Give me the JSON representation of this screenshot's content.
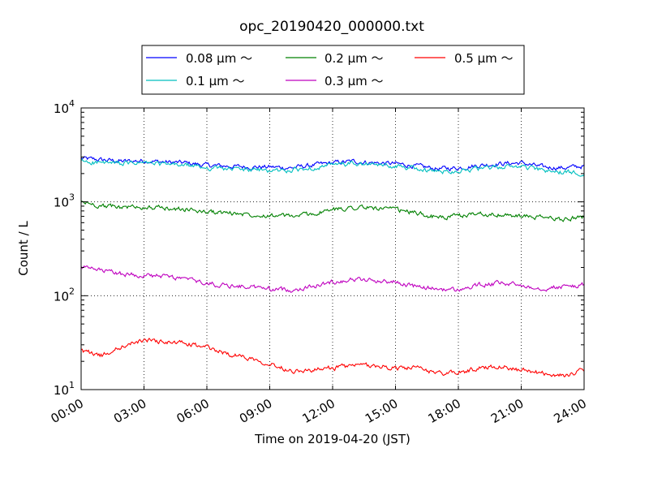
{
  "chart_data": {
    "type": "line",
    "title": "opc_20190420_000000.txt",
    "xlabel": "Time on 2019-04-20 (JST)",
    "ylabel": "Count / L",
    "y_scale": "log",
    "ylim": [
      10,
      10000
    ],
    "xlim": [
      "00:00",
      "24:00"
    ],
    "grid": true,
    "legend_position": "top",
    "x_ticks": [
      "00:00",
      "03:00",
      "06:00",
      "09:00",
      "12:00",
      "15:00",
      "18:00",
      "21:00",
      "24:00"
    ],
    "y_ticks": [
      {
        "value": 10,
        "base": "10",
        "exp": "1"
      },
      {
        "value": 100,
        "base": "10",
        "exp": "2"
      },
      {
        "value": 1000,
        "base": "10",
        "exp": "3"
      },
      {
        "value": 10000,
        "base": "10",
        "exp": "4"
      }
    ],
    "x_hours": [
      0,
      1,
      2,
      3,
      4,
      5,
      6,
      7,
      8,
      9,
      10,
      11,
      12,
      13,
      14,
      15,
      16,
      17,
      18,
      19,
      20,
      21,
      22,
      23,
      24
    ],
    "series": [
      {
        "name": "0.08 μm ～",
        "color": "#0000ff",
        "values": [
          2900,
          2800,
          2700,
          2750,
          2650,
          2600,
          2450,
          2400,
          2350,
          2350,
          2300,
          2450,
          2600,
          2700,
          2600,
          2550,
          2400,
          2250,
          2300,
          2450,
          2550,
          2600,
          2350,
          2300,
          2400
        ]
      },
      {
        "name": "0.1 μm ～",
        "color": "#00bfbf",
        "values": [
          2700,
          2600,
          2550,
          2600,
          2500,
          2450,
          2300,
          2250,
          2200,
          2150,
          2150,
          2300,
          2450,
          2550,
          2450,
          2400,
          2250,
          2100,
          2150,
          2250,
          2350,
          2400,
          2150,
          2050,
          2050
        ]
      },
      {
        "name": "0.2 μm ～",
        "color": "#008000",
        "values": [
          1000,
          900,
          880,
          880,
          850,
          830,
          780,
          760,
          740,
          720,
          700,
          740,
          820,
          880,
          860,
          820,
          760,
          680,
          700,
          760,
          720,
          700,
          680,
          650,
          700
        ]
      },
      {
        "name": "0.3 μm ～",
        "color": "#bf00bf",
        "values": [
          200,
          185,
          170,
          165,
          160,
          150,
          135,
          128,
          125,
          118,
          115,
          125,
          140,
          150,
          145,
          140,
          125,
          118,
          115,
          130,
          135,
          130,
          120,
          125,
          130
        ]
      },
      {
        "name": "0.5 μm ～",
        "color": "#ff0000",
        "values": [
          26,
          23,
          29,
          34,
          32,
          31,
          28,
          24,
          22,
          19,
          16,
          16,
          17,
          18,
          18,
          17,
          17,
          15,
          15,
          17,
          18,
          16,
          15,
          14,
          16
        ]
      }
    ]
  }
}
